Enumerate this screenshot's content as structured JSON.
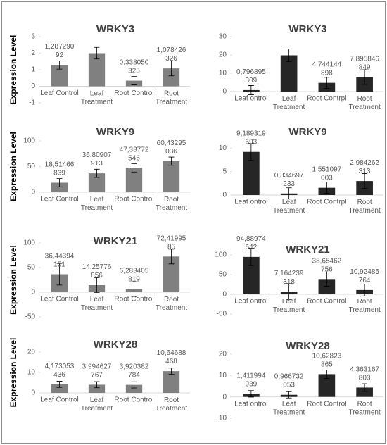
{
  "chart_data": [
    {
      "type": "bar",
      "title": "WRKY3",
      "ylabel": "Expression Level",
      "color": "#808080",
      "categories": [
        "Leaf Control",
        "Leaf\nTreatment",
        "Root Control",
        "Root\nTreatment"
      ],
      "values": [
        1.28729092,
        2.0,
        0.338050325,
        1.078426326
      ],
      "errors": [
        0.25,
        0.35,
        0.25,
        0.45
      ],
      "value_labels": [
        "1,287290\n92",
        null,
        "0,338050\n325",
        "1,078426\n326"
      ],
      "ylim": [
        -1,
        3
      ],
      "yticks": [
        -1,
        0,
        1,
        2,
        3
      ]
    },
    {
      "type": "bar",
      "title": "WRKY3",
      "color": "#262626",
      "categories": [
        "Leaf ontrol",
        "Leaf\nTreatment",
        "Root Contrpl",
        "Root\nTreatment"
      ],
      "values": [
        0.796895309,
        19.8,
        4.744144898,
        7.895846849
      ],
      "errors": [
        2.5,
        3.5,
        3,
        4
      ],
      "value_labels": [
        "0,796895\n309",
        null,
        "4,744144\n898",
        "7,895846\n849"
      ],
      "ylim": [
        0,
        30
      ],
      "yticks": [
        0,
        10,
        20,
        30
      ]
    },
    {
      "type": "bar",
      "title": "WRKY9",
      "ylabel": "Expression Level",
      "color": "#808080",
      "categories": [
        "Leaf Control",
        "Leaf\nTreatment",
        "Root Control",
        "Root\nTreatment"
      ],
      "values": [
        18.51466839,
        36.80907913,
        47.33772546,
        60.43295036
      ],
      "errors": [
        8,
        8,
        8,
        8
      ],
      "value_labels": [
        "18,51466\n839",
        "36,80907\n913",
        "47,33772\n546",
        "60,43295\n036"
      ],
      "ylim": [
        0,
        100
      ],
      "yticks": [
        0,
        50,
        100
      ]
    },
    {
      "type": "bar",
      "title": "WRKY9",
      "color": "#262626",
      "categories": [
        "Leaf ontrol",
        "Leaf\nTreatment",
        "Root Contrpl",
        "Root\nTreatment"
      ],
      "values": [
        9.189319693,
        0.334697233,
        1.551097003,
        2.984262313
      ],
      "errors": [
        1.8,
        1.2,
        1.2,
        1.6
      ],
      "value_labels": [
        "9,189319\n693",
        "0,334697\n233",
        "1,551097\n003",
        "2,984262\n313"
      ],
      "ylim": [
        0,
        12
      ],
      "yticks": [
        0,
        5,
        10
      ]
    },
    {
      "type": "bar",
      "title": "WRKY21",
      "ylabel": "Expression Level",
      "color": "#808080",
      "categories": [
        "Leaf Control",
        "Leaf\nTreatment",
        "Root Control",
        "Root\nTreatment"
      ],
      "values": [
        36.44394151,
        14.25776856,
        6.283405819,
        72.4199585
      ],
      "errors": [
        22,
        15,
        15,
        15
      ],
      "value_labels": [
        "36,44394\n151",
        "14,25776\n856",
        "6,283405\n819",
        "72,41995\n85"
      ],
      "ylim": [
        -50,
        100
      ],
      "yticks": [
        -50,
        0,
        50,
        100
      ]
    },
    {
      "type": "bar",
      "title": "WRKY21",
      "color": "#262626",
      "categories": [
        "Leaf ontrol",
        "Leaf\nTreatment",
        "Root Control",
        "Root\nTreatment"
      ],
      "values": [
        94.88974642,
        7.164239318,
        38.65462756,
        10.92485764
      ],
      "errors": [
        22,
        20,
        18,
        15
      ],
      "value_labels": [
        "94,88974\n642",
        "7,164239\n318",
        "38,65462\n756",
        "10,92485\n764"
      ],
      "ylim": [
        -50,
        100
      ],
      "yticks": [
        -50,
        0,
        50,
        100
      ]
    },
    {
      "type": "bar",
      "title": "WRKY28",
      "ylabel": "Expression Level",
      "color": "#808080",
      "categories": [
        "Leaf Control",
        "Leaf\nTreatment",
        "Root Control",
        "Root\nTreatment"
      ],
      "values": [
        4.173053436,
        3.994627767,
        3.920382784,
        10.64688468
      ],
      "errors": [
        1.5,
        1.5,
        1.5,
        1.5
      ],
      "value_labels": [
        "4,173053\n436",
        "3,994627\n767",
        "3,920382\n784",
        "10,64688\n468"
      ],
      "ylim": [
        0,
        20
      ],
      "yticks": [
        0,
        10,
        20
      ]
    },
    {
      "type": "bar",
      "title": "WRKY28",
      "color": "#262626",
      "categories": [
        "Leaf ontrol",
        "Leaf\nTreatment",
        "Root Control",
        "Root\nTreatment"
      ],
      "values": [
        1.411994939,
        0.966732053,
        10.62823865,
        4.363167803
      ],
      "errors": [
        1.5,
        1.5,
        2,
        1.8
      ],
      "value_labels": [
        "1,411994\n939",
        "0,966732\n053",
        "10,62823\n865",
        "4,363167\n803"
      ],
      "ylim": [
        -10,
        20
      ],
      "yticks": [
        -10,
        0,
        10,
        20
      ]
    }
  ]
}
